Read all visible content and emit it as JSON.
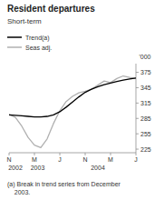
{
  "chart_data": {
    "type": "line",
    "title": "Resident departures",
    "subtitle": "Short-term",
    "y_label": "'000",
    "footnote": "(a) Break in trend series from December\n    2003.",
    "x": [
      0,
      1,
      2,
      3,
      4,
      5,
      6,
      7,
      8,
      9,
      10,
      11,
      12,
      13,
      14,
      15,
      16,
      17,
      18,
      19,
      20
    ],
    "series": [
      {
        "name": "Trend(a)",
        "color": "#000000",
        "values": [
          292,
          291,
          290,
          289,
          288,
          288,
          289,
          292,
          298,
          307,
          317,
          327,
          336,
          342,
          347,
          351,
          354,
          357,
          360,
          362,
          364
        ]
      },
      {
        "name": "Seas adj.",
        "color": "#b0b0b0",
        "values": [
          293,
          287,
          270,
          248,
          233,
          228,
          245,
          275,
          300,
          318,
          328,
          335,
          338,
          342,
          350,
          358,
          355,
          363,
          368,
          365,
          363
        ]
      }
    ],
    "xlim": [
      0,
      20
    ],
    "xticks": [
      {
        "value": 0,
        "label": "N"
      },
      {
        "value": 4,
        "label": "M"
      },
      {
        "value": 8,
        "label": "J"
      },
      {
        "value": 12,
        "label": "N"
      },
      {
        "value": 16,
        "label": "M"
      },
      {
        "value": 20,
        "label": "J"
      }
    ],
    "ylim": [
      218,
      392
    ],
    "yticks": [
      225,
      255,
      285,
      315,
      345,
      375
    ],
    "annotations": [
      {
        "text": "2002",
        "x": 1.0
      },
      {
        "text": "2003",
        "x": 4.5
      },
      {
        "text": "2004",
        "x": 14.0
      }
    ],
    "grid": false,
    "legend": "top-left"
  }
}
